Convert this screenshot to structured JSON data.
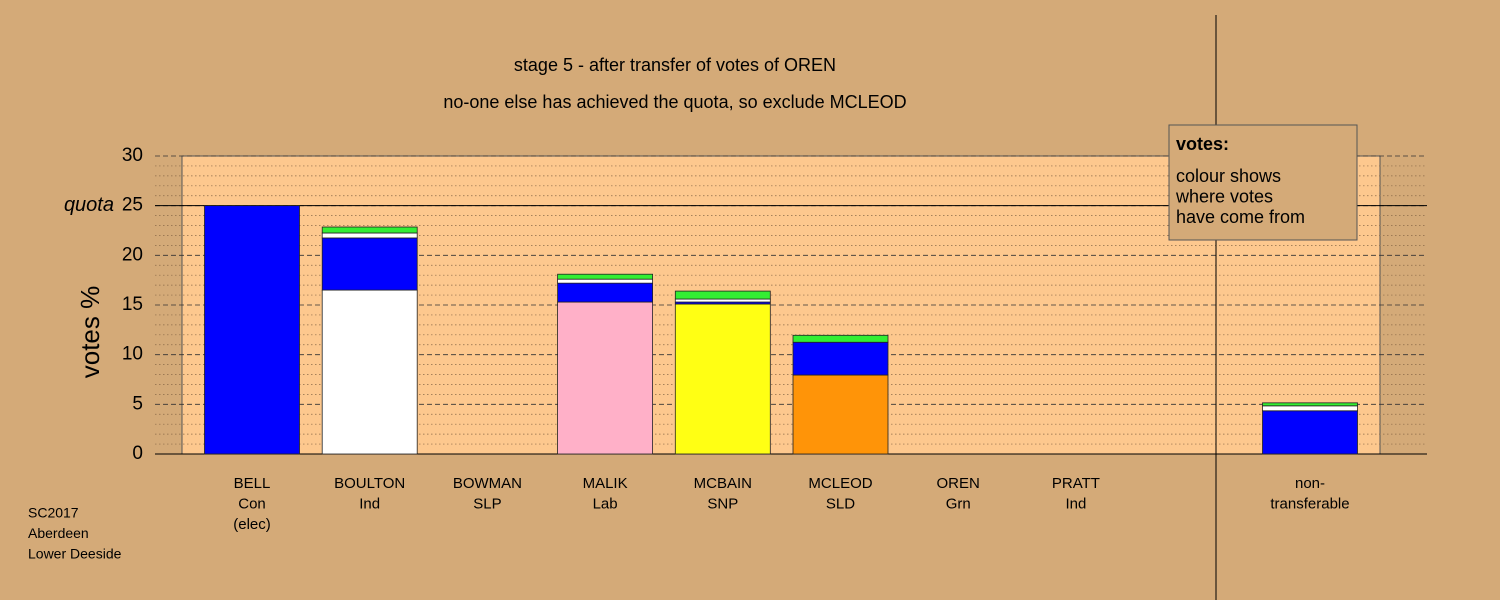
{
  "chart_data": {
    "type": "bar",
    "title": "stage 5 - after transfer of votes of OREN",
    "subtitle": "no-one else has achieved the quota, so exclude MCLEOD",
    "y_label": "votes %",
    "quota_label": "quota",
    "quota": 25,
    "categories": [
      [
        "BELL",
        "Con",
        "(elec)"
      ],
      [
        "BOULTON",
        "Ind"
      ],
      [
        "BOWMAN",
        "SLP"
      ],
      [
        "MALIK",
        "Lab"
      ],
      [
        "MCBAIN",
        "SNP"
      ],
      [
        "MCLEOD",
        "SLD"
      ],
      [
        "OREN",
        "Grn"
      ],
      [
        "PRATT",
        "Ind"
      ],
      [
        "non-",
        "transferable"
      ]
    ],
    "series": [
      {
        "color": "#0000ff",
        "values": [
          25,
          null,
          null,
          null,
          null,
          null,
          null,
          null,
          null
        ]
      },
      {
        "color": "#ffffff",
        "values": [
          null,
          16.5,
          null,
          null,
          null,
          null,
          null,
          null,
          null
        ]
      },
      {
        "color": "#ffb0c8",
        "values": [
          null,
          null,
          null,
          15.3,
          null,
          null,
          null,
          null,
          null
        ]
      },
      {
        "color": "#ffff14",
        "values": [
          null,
          null,
          null,
          null,
          15.1,
          null,
          null,
          null,
          null
        ]
      },
      {
        "color": "#ff9408",
        "values": [
          null,
          null,
          null,
          null,
          null,
          7.95,
          null,
          null,
          null
        ]
      },
      {
        "color": "#0000ff",
        "values": [
          null,
          5.25,
          null,
          1.9,
          0.2,
          3.3,
          null,
          null,
          4.35
        ]
      },
      {
        "color": "#ffffff",
        "values": [
          null,
          0.5,
          null,
          0.4,
          0.3,
          null,
          null,
          null,
          0.5
        ]
      },
      {
        "color": "#33ee33",
        "values": [
          null,
          0.6,
          null,
          0.5,
          0.8,
          0.7,
          null,
          null,
          0.3
        ]
      }
    ],
    "ylim": [
      0,
      30
    ],
    "yticks": [
      0,
      5,
      10,
      15,
      20,
      25,
      30
    ],
    "minor_grid_step": 1,
    "legend_box": {
      "heading": "votes:",
      "lines": [
        "colour shows",
        "where votes",
        "have come from"
      ]
    },
    "footnote": [
      "SC2017",
      "Aberdeen",
      "Lower Deeside"
    ]
  }
}
